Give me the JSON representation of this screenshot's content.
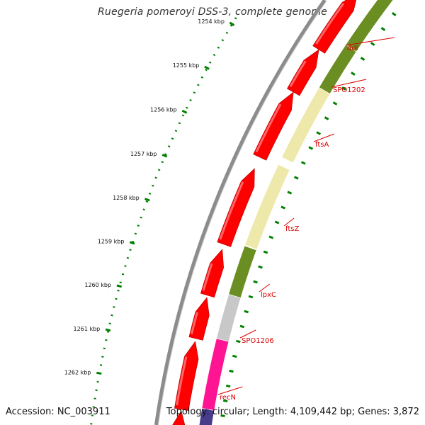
{
  "title": "Ruegeria pomeroyi DSS-3, complete genome",
  "footer": {
    "accession": "Accession: NC_003911",
    "topology": "Topology: circular; Length: 4,109,442 bp; Genes: 3,872"
  },
  "ticks": [
    "1254 kbp",
    "1255 kbp",
    "1256 kbp",
    "1257 kbp",
    "1258 kbp",
    "1259 kbp",
    "1260 kbp",
    "1261 kbp",
    "1262 kbp"
  ],
  "genes": [
    {
      "name": "ddl",
      "label_color": "#dd0000"
    },
    {
      "name": "SPO1202",
      "label_color": "#dd0000"
    },
    {
      "name": "ftsA",
      "label_color": "#dd0000"
    },
    {
      "name": "ftsZ",
      "label_color": "#dd0000"
    },
    {
      "name": "lpxC",
      "label_color": "#dd0000"
    },
    {
      "name": "SPO1206",
      "label_color": "#dd0000"
    },
    {
      "name": "recN",
      "label_color": "#dd0000"
    }
  ],
  "colors": {
    "cds": "#ff0000",
    "cog_green": "#6b8e23",
    "cog_yellow": "#eee8aa",
    "cog_gray": "#c8c8c8",
    "cog_pink": "#ff1493",
    "cog_purple": "#483d8b",
    "backbone": "#8c8c8c",
    "ruler": "#008000"
  }
}
